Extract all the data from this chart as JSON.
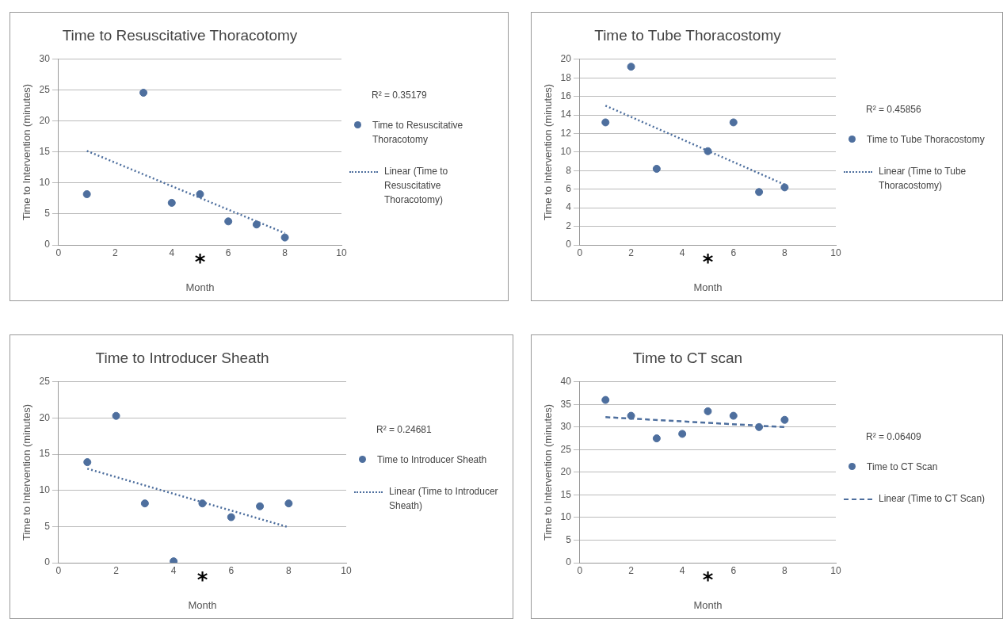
{
  "chart_data": [
    {
      "type": "scatter",
      "title": "Time to Resuscitative Thoracotomy",
      "xlabel": "Month",
      "ylabel": "Time to Intervention (minutes)",
      "x": [
        1,
        3,
        4,
        5,
        6,
        7,
        8
      ],
      "series": [
        {
          "name": "Time to Resuscitative Thoracotomy",
          "color": "#4e6f9e",
          "values": [
            8.2,
            24.6,
            6.8,
            8.2,
            3.8,
            3.3,
            1.2
          ]
        },
        {
          "name": "Linear (Time to Resuscitative Thoracotomy)",
          "type": "line",
          "marker": "none",
          "line_style": "dotted",
          "color": "#4e6f9e",
          "values": [
            15.2,
            null,
            null,
            null,
            null,
            null,
            1.9
          ]
        }
      ],
      "xlim": [
        0,
        10
      ],
      "xticks": [
        0,
        2,
        4,
        6,
        8,
        10
      ],
      "ylim": [
        0,
        30
      ],
      "yticks": [
        0,
        5,
        10,
        15,
        20,
        25,
        30
      ],
      "grid": "y",
      "legend": "right",
      "marker": "circle",
      "annotations": [
        "R² = 0.35179",
        "*"
      ]
    },
    {
      "type": "scatter",
      "title": "Time to Tube Thoracostomy",
      "xlabel": "Month",
      "ylabel": "Time to Intervention (minutes)",
      "x": [
        1,
        2,
        3,
        5,
        6,
        7,
        8
      ],
      "series": [
        {
          "name": "Time to Tube Thoracostomy",
          "color": "#4e6f9e",
          "values": [
            13.2,
            19.2,
            8.2,
            10.1,
            13.2,
            5.7,
            6.2
          ]
        },
        {
          "name": "Linear (Time to Tube Thoracostomy)",
          "type": "line",
          "marker": "none",
          "line_style": "dotted",
          "color": "#4e6f9e",
          "values": [
            15.0,
            null,
            null,
            null,
            null,
            null,
            6.5
          ]
        }
      ],
      "xlim": [
        0,
        10
      ],
      "xticks": [
        0,
        2,
        4,
        6,
        8,
        10
      ],
      "ylim": [
        0,
        20
      ],
      "yticks": [
        0,
        2,
        4,
        6,
        8,
        10,
        12,
        14,
        16,
        18,
        20
      ],
      "grid": "y",
      "legend": "right",
      "marker": "circle",
      "annotations": [
        "R² = 0.45856",
        "*"
      ]
    },
    {
      "type": "scatter",
      "title": "Time to Introducer Sheath",
      "xlabel": "Month",
      "ylabel": "Time to Intervention (minutes)",
      "x": [
        1,
        2,
        3,
        4,
        5,
        6,
        7,
        8
      ],
      "series": [
        {
          "name": "Time to Introducer Sheath",
          "color": "#4e6f9e",
          "values": [
            13.9,
            20.3,
            8.2,
            0.2,
            8.2,
            6.3,
            7.8,
            8.2
          ]
        },
        {
          "name": "Linear (Time to Introducer Sheath)",
          "type": "line",
          "marker": "none",
          "line_style": "dotted",
          "color": "#4e6f9e",
          "values": [
            13.0,
            null,
            null,
            null,
            null,
            null,
            null,
            4.9
          ]
        }
      ],
      "xlim": [
        0,
        10
      ],
      "xticks": [
        0,
        2,
        4,
        6,
        8,
        10
      ],
      "ylim": [
        0,
        25
      ],
      "yticks": [
        0,
        5,
        10,
        15,
        20,
        25
      ],
      "grid": "y",
      "legend": "right",
      "marker": "circle",
      "annotations": [
        "R² = 0.24681",
        "*"
      ]
    },
    {
      "type": "scatter",
      "title": "Time to CT scan",
      "xlabel": "Month",
      "ylabel": "Time to Intervention (minutes)",
      "x": [
        1,
        2,
        3,
        4,
        5,
        6,
        7,
        8
      ],
      "series": [
        {
          "name": "Time to CT Scan",
          "color": "#4e6f9e",
          "values": [
            36.0,
            32.5,
            27.5,
            28.5,
            33.5,
            32.5,
            30.0,
            31.6
          ]
        },
        {
          "name": "Linear (Time to CT Scan)",
          "type": "line",
          "marker": "none",
          "line_style": "dashed",
          "color": "#4e6f9e",
          "values": [
            32.2,
            null,
            null,
            null,
            null,
            null,
            null,
            30.0
          ]
        }
      ],
      "xlim": [
        0,
        10
      ],
      "xticks": [
        0,
        2,
        4,
        6,
        8,
        10
      ],
      "ylim": [
        0,
        40
      ],
      "yticks": [
        0,
        5,
        10,
        15,
        20,
        25,
        30,
        35,
        40
      ],
      "grid": "y",
      "legend": "right",
      "marker": "circle",
      "annotations": [
        "R² = 0.06409",
        "*"
      ]
    }
  ]
}
